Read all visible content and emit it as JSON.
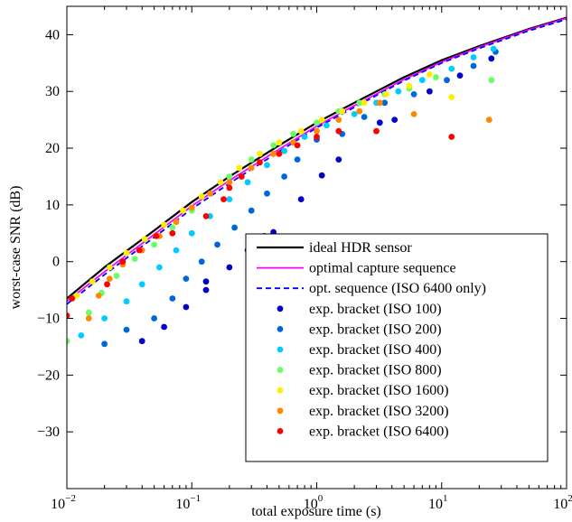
{
  "chart_data": {
    "type": "scatter",
    "title": "",
    "xlabel": "total exposure time (s)",
    "ylabel": "worst-case SNR (dB)",
    "xscale": "log",
    "xlim": [
      0.01,
      100
    ],
    "ylim": [
      -40,
      45
    ],
    "xticks": [
      {
        "value": 0.01,
        "base": "10",
        "exp": "−2"
      },
      {
        "value": 0.1,
        "base": "10",
        "exp": "−1"
      },
      {
        "value": 1,
        "base": "10",
        "exp": "0"
      },
      {
        "value": 10,
        "base": "10",
        "exp": "1"
      },
      {
        "value": 100,
        "base": "10",
        "exp": "2"
      }
    ],
    "yticks": [
      "−30",
      "−20",
      "−10",
      "0",
      "10",
      "20",
      "30",
      "40"
    ],
    "ytick_values": [
      -30,
      -20,
      -10,
      0,
      10,
      20,
      30,
      40
    ],
    "grid": false,
    "legend_position": "bottom-right",
    "series": [
      {
        "name": "ideal HDR sensor",
        "kind": "line",
        "style": "solid",
        "color": "#000000",
        "points": [
          [
            0.01,
            -6.5
          ],
          [
            0.02,
            -1
          ],
          [
            0.05,
            5.5
          ],
          [
            0.1,
            10.5
          ],
          [
            0.2,
            15
          ],
          [
            0.5,
            20.5
          ],
          [
            1,
            24.5
          ],
          [
            2,
            28
          ],
          [
            5,
            32.5
          ],
          [
            10,
            35.5
          ],
          [
            20,
            38
          ],
          [
            50,
            41
          ],
          [
            100,
            43
          ]
        ]
      },
      {
        "name": "optimal capture sequence",
        "kind": "line",
        "style": "solid",
        "color": "#ff00ff",
        "points": [
          [
            0.01,
            -7
          ],
          [
            0.02,
            -1.8
          ],
          [
            0.05,
            4.8
          ],
          [
            0.1,
            9.8
          ],
          [
            0.2,
            14.3
          ],
          [
            0.5,
            19.8
          ],
          [
            1,
            23.9
          ],
          [
            2,
            27.5
          ],
          [
            5,
            32.1
          ],
          [
            10,
            35.2
          ],
          [
            20,
            37.8
          ],
          [
            50,
            40.9
          ],
          [
            100,
            42.9
          ]
        ]
      },
      {
        "name": "opt. sequence (ISO 6400 only)",
        "kind": "line",
        "style": "dashed",
        "color": "#0000ff",
        "points": [
          [
            0.01,
            -7.5
          ],
          [
            0.02,
            -2.3
          ],
          [
            0.05,
            4.3
          ],
          [
            0.1,
            9.3
          ],
          [
            0.2,
            13.8
          ],
          [
            0.5,
            19.4
          ],
          [
            1,
            23.6
          ],
          [
            2,
            27.2
          ],
          [
            5,
            31.9
          ],
          [
            10,
            35
          ],
          [
            20,
            37.6
          ],
          [
            50,
            40.7
          ],
          [
            100,
            42.7
          ]
        ]
      },
      {
        "name": "exp. bracket (ISO 100)",
        "kind": "scatter",
        "color": "#0000cc",
        "points": [
          [
            0.04,
            -14
          ],
          [
            0.06,
            -11.5
          ],
          [
            0.09,
            -8
          ],
          [
            0.13,
            -5
          ],
          [
            0.13,
            -3.5
          ],
          [
            0.2,
            -1
          ],
          [
            0.28,
            2
          ],
          [
            0.38,
            4.5
          ],
          [
            0.45,
            5.2
          ],
          [
            0.75,
            11
          ],
          [
            1.1,
            15.2
          ],
          [
            1.5,
            18
          ],
          [
            3.2,
            24.5
          ],
          [
            4.2,
            25
          ],
          [
            8,
            30
          ],
          [
            14,
            32.8
          ],
          [
            25,
            35.8
          ]
        ]
      },
      {
        "name": "exp. bracket (ISO 200)",
        "kind": "scatter",
        "color": "#0066dd",
        "points": [
          [
            0.02,
            -14.5
          ],
          [
            0.03,
            -12
          ],
          [
            0.05,
            -10
          ],
          [
            0.07,
            -6.5
          ],
          [
            0.09,
            -3
          ],
          [
            0.12,
            0
          ],
          [
            0.16,
            3
          ],
          [
            0.22,
            6
          ],
          [
            0.3,
            9
          ],
          [
            0.4,
            12
          ],
          [
            0.55,
            15
          ],
          [
            0.7,
            18
          ],
          [
            1,
            21.5
          ],
          [
            1.6,
            22.5
          ],
          [
            2.4,
            25.5
          ],
          [
            3.5,
            28
          ],
          [
            6,
            29.5
          ],
          [
            11,
            32
          ],
          [
            18,
            34.5
          ],
          [
            27,
            37
          ]
        ]
      },
      {
        "name": "exp. bracket (ISO 400)",
        "kind": "scatter",
        "color": "#00ccff",
        "points": [
          [
            0.013,
            -13
          ],
          [
            0.02,
            -10
          ],
          [
            0.03,
            -7
          ],
          [
            0.04,
            -4
          ],
          [
            0.055,
            -1
          ],
          [
            0.075,
            2
          ],
          [
            0.1,
            5
          ],
          [
            0.14,
            8
          ],
          [
            0.2,
            11
          ],
          [
            0.28,
            14
          ],
          [
            0.4,
            17
          ],
          [
            0.55,
            19.5
          ],
          [
            0.8,
            22
          ],
          [
            1.2,
            24
          ],
          [
            2,
            26
          ],
          [
            3,
            28
          ],
          [
            4.5,
            30
          ],
          [
            7,
            32
          ],
          [
            12,
            34
          ],
          [
            18,
            36
          ],
          [
            26,
            37.5
          ]
        ]
      },
      {
        "name": "exp. bracket (ISO 800)",
        "kind": "scatter",
        "color": "#66ff66",
        "points": [
          [
            0.01,
            -14
          ],
          [
            0.015,
            -9
          ],
          [
            0.019,
            -5.5
          ],
          [
            0.025,
            -2.5
          ],
          [
            0.035,
            0.5
          ],
          [
            0.05,
            3
          ],
          [
            0.07,
            6
          ],
          [
            0.1,
            9
          ],
          [
            0.14,
            12
          ],
          [
            0.2,
            15
          ],
          [
            0.3,
            18
          ],
          [
            0.45,
            20.5
          ],
          [
            0.65,
            22.5
          ],
          [
            1,
            24.5
          ],
          [
            1.5,
            26.5
          ],
          [
            2.2,
            28
          ],
          [
            3.5,
            29.5
          ],
          [
            5.5,
            30.5
          ],
          [
            9,
            32.5
          ],
          [
            25,
            32
          ]
        ]
      },
      {
        "name": "exp. bracket (ISO 1600)",
        "kind": "scatter",
        "color": "#ffee00",
        "points": [
          [
            0.012,
            -6
          ],
          [
            0.016,
            -3.5
          ],
          [
            0.022,
            -1
          ],
          [
            0.03,
            1.5
          ],
          [
            0.042,
            4
          ],
          [
            0.06,
            6.5
          ],
          [
            0.085,
            9
          ],
          [
            0.12,
            11.5
          ],
          [
            0.17,
            14
          ],
          [
            0.24,
            16.5
          ],
          [
            0.35,
            19
          ],
          [
            0.5,
            21
          ],
          [
            0.75,
            23
          ],
          [
            1.1,
            25
          ],
          [
            1.6,
            26.5
          ],
          [
            2.4,
            28
          ],
          [
            3.6,
            29.5
          ],
          [
            5.5,
            31
          ],
          [
            8,
            33
          ],
          [
            12,
            29
          ]
        ]
      },
      {
        "name": "exp. bracket (ISO 3200)",
        "kind": "scatter",
        "color": "#ff8800",
        "points": [
          [
            0.015,
            -10
          ],
          [
            0.018,
            -6
          ],
          [
            0.022,
            -3
          ],
          [
            0.028,
            -0.5
          ],
          [
            0.04,
            2
          ],
          [
            0.055,
            4.5
          ],
          [
            0.075,
            7
          ],
          [
            0.1,
            9.5
          ],
          [
            0.14,
            12
          ],
          [
            0.2,
            14
          ],
          [
            0.3,
            16.5
          ],
          [
            0.45,
            19
          ],
          [
            0.65,
            21
          ],
          [
            1,
            23
          ],
          [
            1.5,
            25
          ],
          [
            2.2,
            26.5
          ],
          [
            3.2,
            28
          ],
          [
            6,
            26
          ],
          [
            24,
            25
          ]
        ]
      },
      {
        "name": "exp. bracket (ISO 6400)",
        "kind": "scatter",
        "color": "#ff0000",
        "points": [
          [
            0.01,
            -9.5
          ],
          [
            0.011,
            -6.5
          ],
          [
            0.021,
            -4
          ],
          [
            0.028,
            0
          ],
          [
            0.038,
            2
          ],
          [
            0.052,
            4.5
          ],
          [
            0.07,
            5
          ],
          [
            0.13,
            8
          ],
          [
            0.18,
            11
          ],
          [
            0.2,
            13
          ],
          [
            0.25,
            15
          ],
          [
            0.35,
            17.5
          ],
          [
            0.5,
            19
          ],
          [
            0.7,
            20.5
          ],
          [
            1,
            22
          ],
          [
            1.5,
            23
          ],
          [
            3,
            23
          ],
          [
            12,
            22
          ]
        ]
      }
    ]
  }
}
